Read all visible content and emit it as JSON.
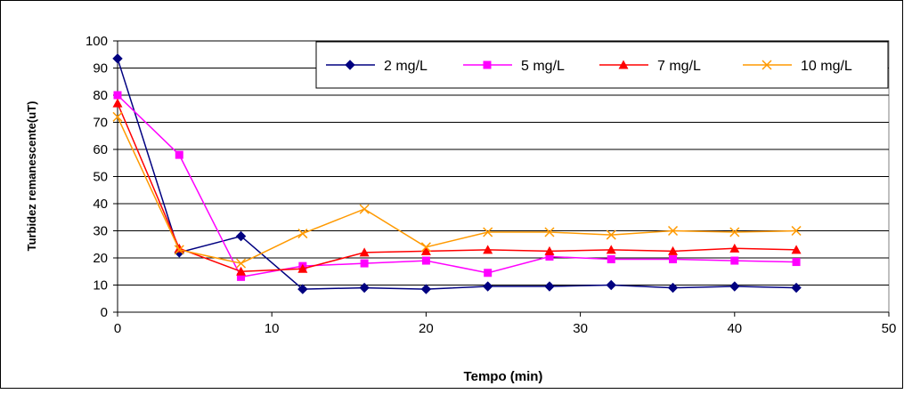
{
  "chart_data": {
    "type": "line",
    "title": "",
    "xlabel": "Tempo (min)",
    "ylabel": "Turbidez remanescente(uT)",
    "xlim": [
      0,
      50
    ],
    "ylim": [
      0,
      100
    ],
    "x_ticks": [
      0,
      10,
      20,
      30,
      40,
      50
    ],
    "y_ticks": [
      0,
      10,
      20,
      30,
      40,
      50,
      60,
      70,
      80,
      90,
      100
    ],
    "grid": "horizontal",
    "legend_position": "top-right",
    "x": [
      0,
      4,
      8,
      12,
      16,
      20,
      24,
      28,
      32,
      36,
      40,
      44
    ],
    "series": [
      {
        "name": "2 mg/L",
        "color": "#000080",
        "marker": "diamond",
        "values": [
          93.5,
          22,
          28,
          8.5,
          9,
          8.5,
          9.5,
          9.5,
          10,
          9,
          9.5,
          9
        ]
      },
      {
        "name": "5 mg/L",
        "color": "#ff00ff",
        "marker": "square",
        "values": [
          80,
          58,
          13,
          17,
          18,
          19,
          14.5,
          20.5,
          19.5,
          19.5,
          19,
          18.5
        ]
      },
      {
        "name": "7 mg/L",
        "color": "#ff0000",
        "marker": "triangle",
        "values": [
          77,
          23.5,
          15,
          16,
          22,
          22.5,
          23,
          22.5,
          23,
          22.5,
          23.5,
          23
        ]
      },
      {
        "name": "10 mg/L",
        "color": "#ff9900",
        "marker": "x",
        "values": [
          72,
          23,
          18,
          29,
          38,
          24,
          29.5,
          29.5,
          28.5,
          30,
          29.5,
          30
        ]
      }
    ]
  }
}
